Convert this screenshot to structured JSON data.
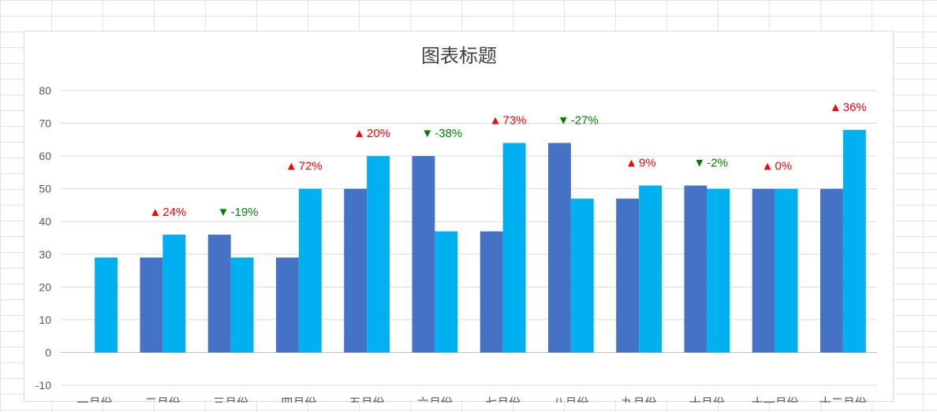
{
  "chart_data": {
    "type": "bar",
    "title": "图表标题",
    "xlabel": "",
    "ylabel": "",
    "ylim": [
      -10,
      80
    ],
    "y_ticks": [
      80,
      70,
      60,
      50,
      40,
      30,
      20,
      10,
      0,
      -10
    ],
    "grid": true,
    "legend": "none",
    "categories": [
      "一月份",
      "二月份",
      "三月份",
      "四月份",
      "五月份",
      "六月份",
      "七月份",
      "八月份",
      "九月份",
      "十月份",
      "十一月份",
      "十二月份"
    ],
    "series": [
      {
        "values": [
          null,
          29,
          36,
          29,
          50,
          60,
          37,
          64,
          47,
          51,
          50,
          50
        ],
        "color": "#4472c4"
      },
      {
        "values": [
          29,
          36,
          29,
          50,
          60,
          37,
          64,
          47,
          51,
          50,
          50,
          68
        ],
        "color": "#00b0f0"
      }
    ],
    "annotations": [
      null,
      {
        "marker": "▲",
        "text": "24%",
        "direction": "up"
      },
      {
        "marker": "▼",
        "text": "-19%",
        "direction": "down"
      },
      {
        "marker": "▲",
        "text": "72%",
        "direction": "up"
      },
      {
        "marker": "▲",
        "text": "20%",
        "direction": "up"
      },
      {
        "marker": "▼",
        "text": "-38%",
        "direction": "down"
      },
      {
        "marker": "▲",
        "text": "73%",
        "direction": "up"
      },
      {
        "marker": "▼",
        "text": "-27%",
        "direction": "down"
      },
      {
        "marker": "▲",
        "text": "9%",
        "direction": "up"
      },
      {
        "marker": "▼",
        "text": "-2%",
        "direction": "down"
      },
      {
        "marker": "▲",
        "text": "0%",
        "direction": "up"
      },
      {
        "marker": "▲",
        "text": "36%",
        "direction": "up"
      }
    ],
    "colors": {
      "up": "#ff0000",
      "down": "#008000"
    }
  }
}
